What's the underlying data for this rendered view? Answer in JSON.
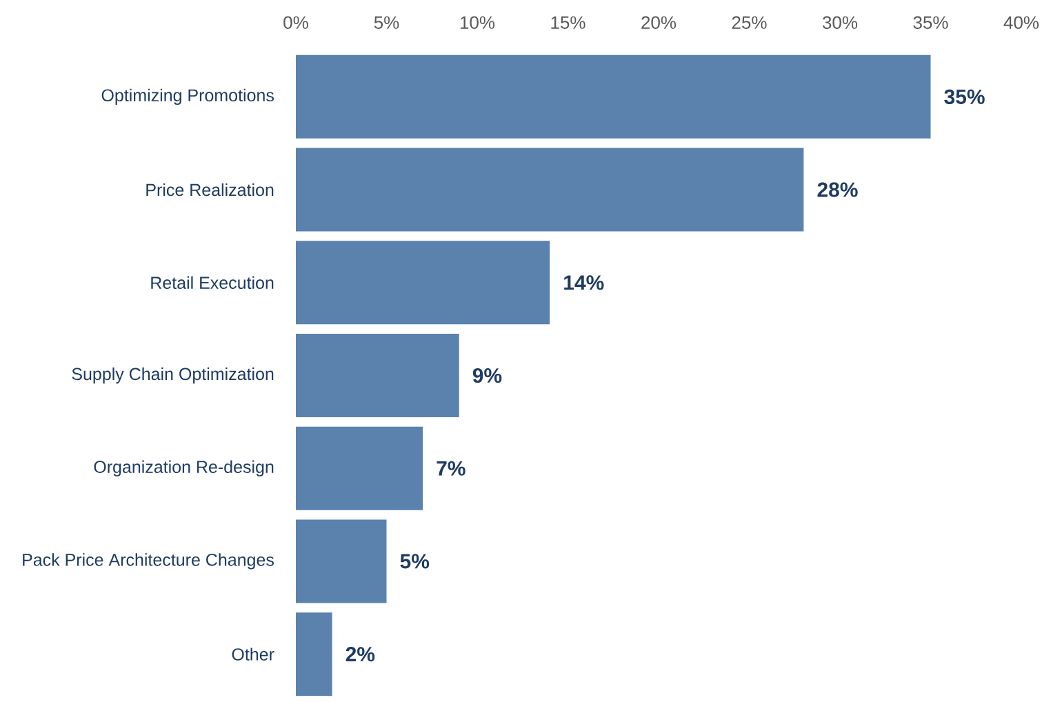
{
  "chart_data": {
    "type": "bar",
    "orientation": "horizontal",
    "categories": [
      "Optimizing Promotions",
      "Price Realization",
      "Retail Execution",
      "Supply Chain Optimization",
      "Organization Re-design",
      "Pack Price Architecture Changes",
      "Other"
    ],
    "values": [
      35,
      28,
      14,
      9,
      7,
      5,
      2
    ],
    "value_labels": [
      "35%",
      "28%",
      "14%",
      "9%",
      "7%",
      "5%",
      "2%"
    ],
    "color": "#5a82ad",
    "xlim": [
      0,
      40
    ],
    "xticks": [
      {
        "value": 0,
        "label": "0%"
      },
      {
        "value": 5,
        "label": "5%"
      },
      {
        "value": 10,
        "label": "10%"
      },
      {
        "value": 15,
        "label": "15%"
      },
      {
        "value": 20,
        "label": "20%"
      },
      {
        "value": 25,
        "label": "25%"
      },
      {
        "value": 30,
        "label": "30%"
      },
      {
        "value": 35,
        "label": "35%"
      },
      {
        "value": 40,
        "label": "40%"
      }
    ],
    "grid": false
  }
}
